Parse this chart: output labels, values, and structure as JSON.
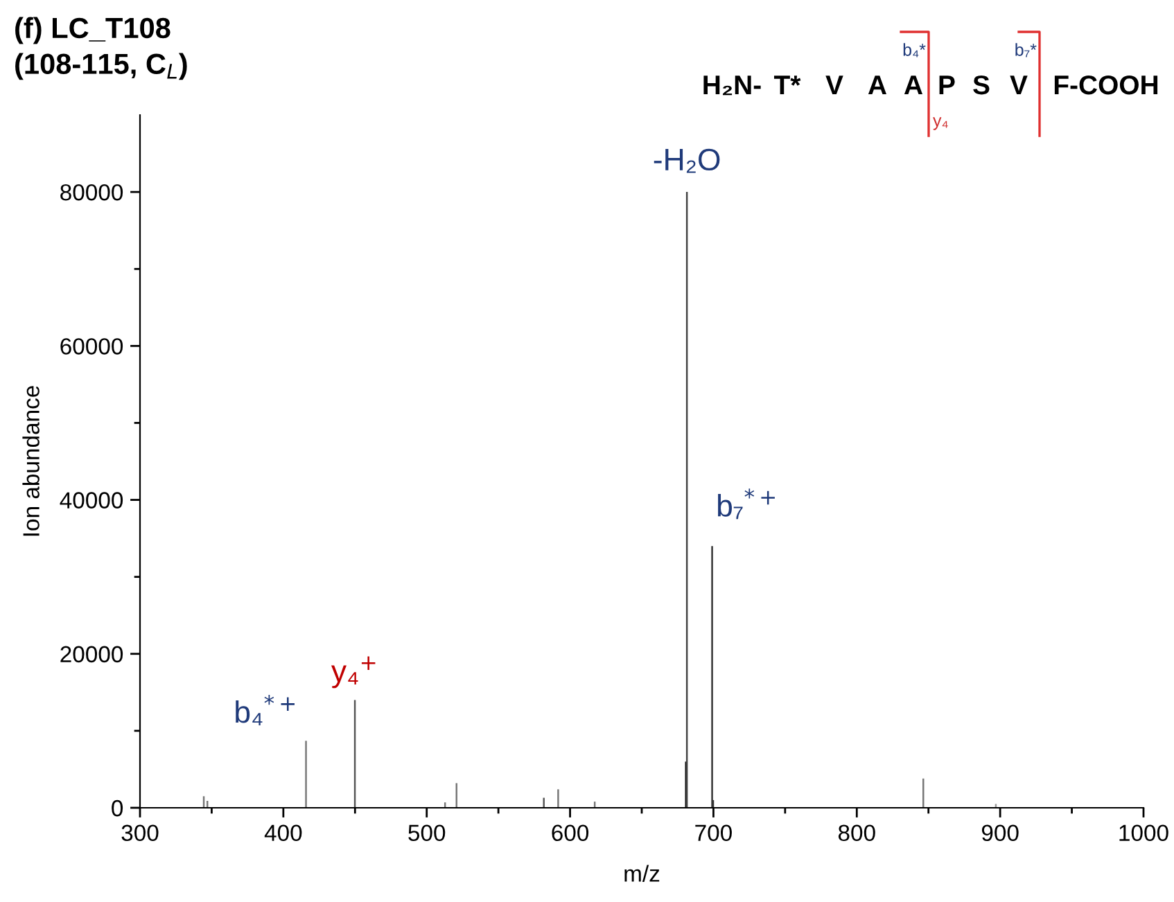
{
  "chart_data": {
    "type": "bar",
    "title": "(f) LC_T108",
    "subtitle": "(108-115, C$_{L}$)",
    "xlabel": "m/z",
    "ylabel": "Ion abundance",
    "x": [
      344.5,
      347,
      415.8,
      449.9,
      512.8,
      520.8,
      581.7,
      591.7,
      617.2,
      680.8,
      681.5,
      699.1,
      699.8,
      846.4,
      897
    ],
    "values": [
      1500,
      900,
      8700,
      14000,
      700,
      3200,
      1300,
      2400,
      800,
      6000,
      80000,
      34000,
      1000,
      3800,
      500
    ],
    "colors": [
      "#777777",
      "#777777",
      "#777777",
      "#555555",
      "#777777",
      "#777777",
      "#555555",
      "#777777",
      "#777777",
      "#111111",
      "#444444",
      "#333333",
      "#333333",
      "#777777",
      "#999999"
    ],
    "xlim": [
      300,
      1000
    ],
    "ylim": [
      0,
      90000
    ],
    "xticks": [
      300,
      {
        "value": 350,
        "label": null
      },
      400,
      {
        "value": 450,
        "label": null
      },
      500,
      {
        "value": 550,
        "label": null
      },
      600,
      {
        "value": 650,
        "label": null
      },
      700,
      {
        "value": 750,
        "label": null
      },
      800,
      {
        "value": 850,
        "label": null
      },
      900,
      {
        "value": 950,
        "label": null
      },
      1000
    ],
    "yticks": [
      0,
      {
        "value": 10000,
        "label": null
      },
      20000,
      {
        "value": 30000,
        "label": null
      },
      40000,
      {
        "value": 50000,
        "label": null
      },
      60000,
      {
        "value": 70000,
        "label": null
      },
      80000
    ],
    "grid": false,
    "legend": false,
    "annotations": [
      {
        "text": "b₄$^{*+}$",
        "x": 415.8,
        "y": 8700
      },
      {
        "text": "y₄$^{+}$",
        "x": 449.9,
        "y": 14000
      },
      {
        "text": "-H₂O",
        "x": 681.5,
        "y": 80000
      },
      {
        "text": "b₇$^{*+}$",
        "x": 699.1,
        "y": 34000
      },
      "H₂N- T* V A A P S V F-COOH",
      "b₄*",
      "y₄",
      "b₇*"
    ]
  }
}
